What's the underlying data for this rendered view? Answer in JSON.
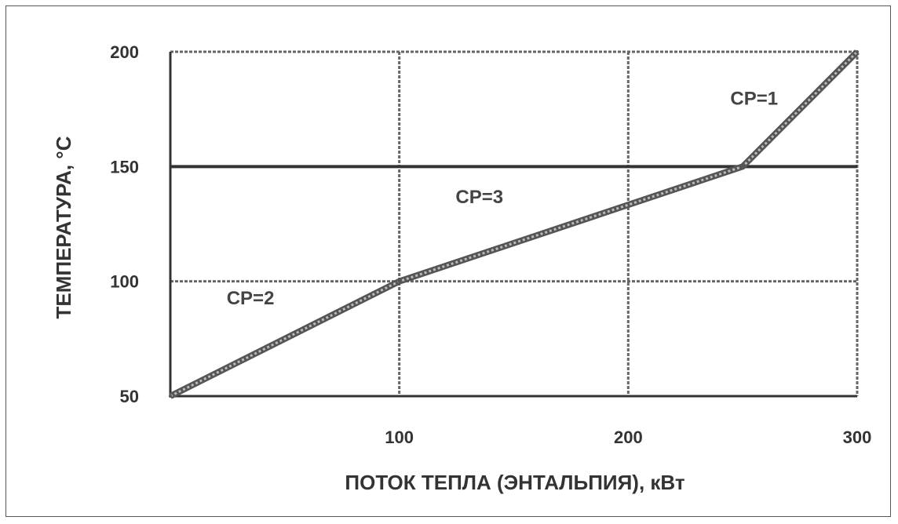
{
  "chart_data": {
    "type": "line",
    "xlabel": "ПОТОК ТЕПЛА (ЭНТАЛЬПИЯ), кВт",
    "ylabel": "ТЕМПЕРАТУРА, °С",
    "xlim": [
      0,
      300
    ],
    "ylim": [
      50,
      200
    ],
    "x_ticks": [
      100,
      200,
      300
    ],
    "y_ticks": [
      50,
      100,
      150,
      200
    ],
    "x_tick_labels": [
      "100",
      "200",
      "300"
    ],
    "y_tick_labels": [
      "50",
      "100",
      "150",
      "200"
    ],
    "grid": true,
    "series": [
      {
        "x": [
          0,
          100,
          250,
          300
        ],
        "y": [
          50,
          100,
          150,
          200
        ]
      }
    ],
    "reference_lines": [
      {
        "y": 150
      }
    ],
    "annotations": [
      {
        "text": "CP=2",
        "x": 35,
        "y": 90
      },
      {
        "text": "CP=3",
        "x": 135,
        "y": 134
      },
      {
        "text": "CP=1",
        "x": 255,
        "y": 177
      }
    ]
  }
}
